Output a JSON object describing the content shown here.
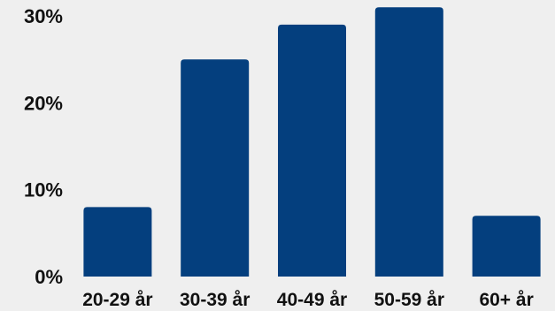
{
  "chart_data": {
    "type": "bar",
    "title": "",
    "xlabel": "",
    "ylabel": "",
    "categories": [
      "20-29 år",
      "30-39 år",
      "40-49 år",
      "50-59 år",
      "60+ år"
    ],
    "values": [
      8,
      25,
      29,
      31,
      7
    ],
    "ylim": [
      0,
      32
    ],
    "y_ticks": [
      0,
      10,
      20,
      30
    ],
    "y_tick_labels": [
      "0%",
      "10%",
      "20%",
      "30%"
    ],
    "grid": false,
    "legend": "none"
  },
  "colors": {
    "background": "#efefef",
    "bar": "#043f7e",
    "text": "#111111"
  }
}
